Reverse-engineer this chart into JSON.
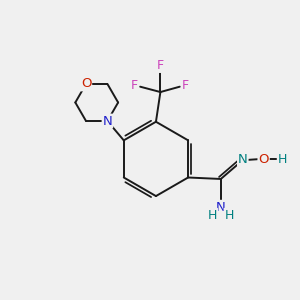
{
  "background_color": "#f0f0f0",
  "bond_color": "#1a1a1a",
  "N_color": "#2222cc",
  "O_color": "#cc2200",
  "F_color": "#cc44bb",
  "teal_color": "#008080",
  "figsize": [
    3.0,
    3.0
  ],
  "dpi": 100,
  "xlim": [
    0,
    10
  ],
  "ylim": [
    0,
    10
  ]
}
